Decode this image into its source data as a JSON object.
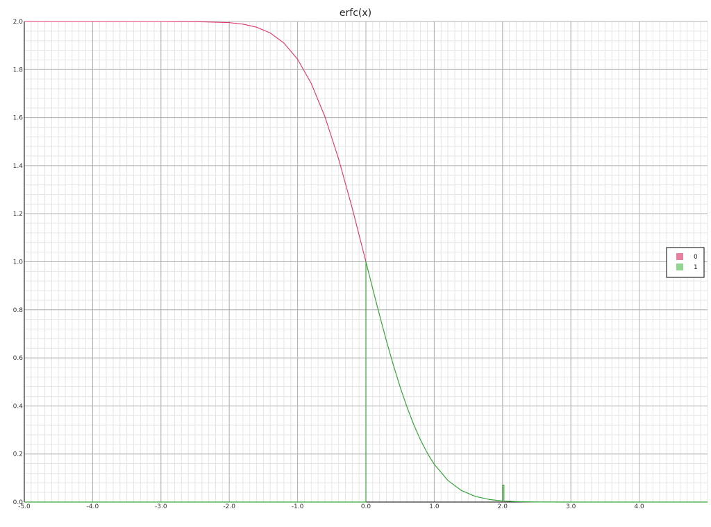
{
  "chart_data": {
    "type": "line",
    "title": "erfc(x)",
    "xlabel": "",
    "ylabel": "",
    "xlim": [
      -5.0,
      5.0
    ],
    "ylim": [
      0.0,
      2.0
    ],
    "x_ticks": [
      "-5.0",
      "-4.0",
      "-3.0",
      "-2.0",
      "-1.0",
      "0.0",
      "1.0",
      "2.0",
      "3.0",
      "4.0"
    ],
    "y_ticks": [
      "0.0",
      "0.2",
      "0.4",
      "0.6",
      "0.8",
      "1.0",
      "1.2",
      "1.4",
      "1.6",
      "1.8",
      "2.0"
    ],
    "grid": true,
    "legend_position": "right",
    "series": [
      {
        "name": "0",
        "color": "#e0306a",
        "legend_color": "#e8819f",
        "x": [
          -5.0,
          -4.5,
          -4.0,
          -3.5,
          -3.0,
          -2.5,
          -2.0,
          -1.8,
          -1.6,
          -1.4,
          -1.2,
          -1.0,
          -0.8,
          -0.6,
          -0.4,
          -0.2,
          0.0
        ],
        "y": [
          2.0,
          2.0,
          2.0,
          2.0,
          2.0,
          1.9996,
          1.9953,
          1.9891,
          1.9763,
          1.9523,
          1.9103,
          1.8427,
          1.7421,
          1.6039,
          1.4284,
          1.2227,
          1.0
        ]
      },
      {
        "name": "1",
        "color": "#3aa33a",
        "legend_color": "#92d592",
        "x": [
          -5.0,
          -0.0001,
          0.0,
          0.0,
          0.1,
          0.2,
          0.3,
          0.4,
          0.5,
          0.6,
          0.7,
          0.8,
          0.9,
          1.0,
          1.2,
          1.4,
          1.6,
          1.8,
          1.98,
          2.0,
          2.0,
          2.02,
          2.02,
          2.1,
          2.2,
          2.3,
          2.5,
          3.0,
          4.0,
          5.0
        ],
        "y": [
          0.0,
          0.0,
          0.0,
          1.0,
          0.8875,
          0.7773,
          0.6714,
          0.5716,
          0.4795,
          0.3961,
          0.3222,
          0.2579,
          0.2031,
          0.1573,
          0.0897,
          0.0477,
          0.0237,
          0.0109,
          0.0051,
          0.0047,
          0.07,
          0.07,
          0.0042,
          0.003,
          0.0019,
          0.0011,
          0.0004,
          0.0,
          0.0,
          0.0
        ]
      }
    ]
  }
}
